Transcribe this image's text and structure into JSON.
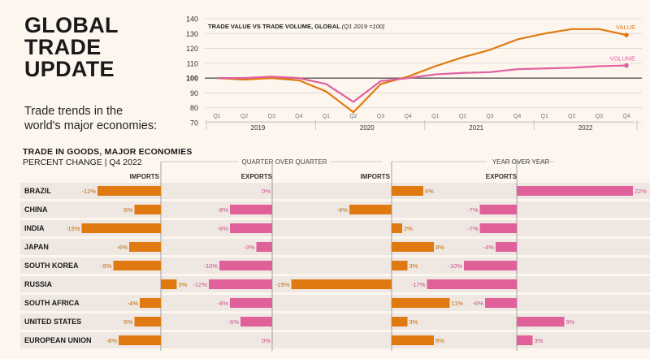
{
  "header": {
    "title_lines": [
      "GLOBAL",
      "TRADE",
      "UPDATE"
    ],
    "subtitle_lines": [
      "Trade trends in the",
      "world's major economies:"
    ]
  },
  "chart_data": [
    {
      "type": "line",
      "title": "TRADE VALUE VS TRADE VOLUME, GLOBAL",
      "title_note": "(Q1 2019 =100)",
      "quarters": [
        "Q1",
        "Q2",
        "Q3",
        "Q4",
        "Q1",
        "Q2",
        "Q3",
        "Q4",
        "Q1",
        "Q2",
        "Q3",
        "Q4",
        "Q1",
        "Q2",
        "Q3",
        "Q4"
      ],
      "years": [
        "2019",
        "2020",
        "2021",
        "2022"
      ],
      "x": [
        1,
        2,
        3,
        4,
        5,
        6,
        7,
        8,
        9,
        10,
        11,
        12,
        13,
        14,
        15,
        16
      ],
      "series": [
        {
          "name": "VALUE",
          "color": "#e07a10",
          "values": [
            100,
            99,
            100,
            98.5,
            91,
            77,
            96,
            101,
            108,
            114,
            119,
            126,
            130,
            133,
            133,
            129
          ]
        },
        {
          "name": "VOLUME",
          "color": "#e060a0",
          "values": [
            100,
            100,
            101,
            100,
            96,
            84,
            98,
            100,
            102.5,
            103.5,
            104,
            106,
            106.5,
            107,
            108,
            108.5
          ]
        }
      ],
      "ylim": [
        70,
        140
      ],
      "yticks": [
        70,
        80,
        90,
        100,
        110,
        120,
        130,
        140
      ],
      "grid": true
    },
    {
      "type": "bar",
      "title": "TRADE IN GOODS, MAJOR ECONOMIES",
      "subtitle": "PERCENT CHANGE | Q4 2022",
      "group_labels": [
        "QUARTER OVER QUARTER",
        "YEAR OVER YEAR"
      ],
      "column_labels": [
        "IMPORTS",
        "EXPORTS",
        "IMPORTS",
        "EXPORTS"
      ],
      "categories": [
        "BRAZIL",
        "CHINA",
        "INDIA",
        "JAPAN",
        "SOUTH KOREA",
        "RUSSIA",
        "SOUTH AFRICA",
        "UNITED STATES",
        "EUROPEAN UNION"
      ],
      "series": [
        {
          "name": "QoQ Imports",
          "color": "#e07a10",
          "values": [
            -12,
            -5,
            -15,
            -6,
            -9,
            3,
            -4,
            -5,
            -8
          ]
        },
        {
          "name": "QoQ Exports",
          "color": "#e0609a",
          "values": [
            0,
            -8,
            -8,
            -3,
            -10,
            -12,
            -8,
            -6,
            0
          ]
        },
        {
          "name": "YoY Imports",
          "color": "#e07a10",
          "values": [
            6,
            -8,
            2,
            8,
            3,
            -19,
            11,
            3,
            8
          ]
        },
        {
          "name": "YoY Exports",
          "color": "#e0609a",
          "values": [
            22,
            -7,
            -7,
            -4,
            -10,
            -17,
            -6,
            9,
            3
          ]
        }
      ]
    }
  ],
  "colors": {
    "accent_orange": "#e07a10",
    "accent_pink": "#e0609a",
    "background": "#fdf6ef"
  }
}
